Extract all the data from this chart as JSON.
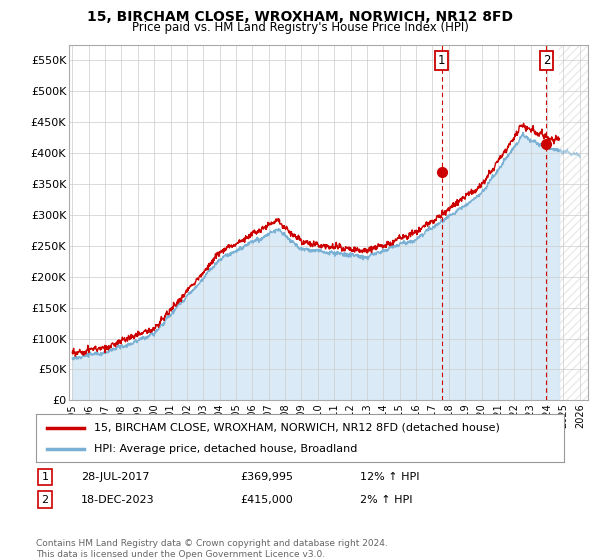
{
  "title": "15, BIRCHAM CLOSE, WROXHAM, NORWICH, NR12 8FD",
  "subtitle": "Price paid vs. HM Land Registry's House Price Index (HPI)",
  "ylabel_ticks": [
    "£0",
    "£50K",
    "£100K",
    "£150K",
    "£200K",
    "£250K",
    "£300K",
    "£350K",
    "£400K",
    "£450K",
    "£500K",
    "£550K"
  ],
  "ytick_values": [
    0,
    50000,
    100000,
    150000,
    200000,
    250000,
    300000,
    350000,
    400000,
    450000,
    500000,
    550000
  ],
  "ylim": [
    0,
    575000
  ],
  "xlim_start": 1994.8,
  "xlim_end": 2026.5,
  "x_ticks": [
    1995,
    1996,
    1997,
    1998,
    1999,
    2000,
    2001,
    2002,
    2003,
    2004,
    2005,
    2006,
    2007,
    2008,
    2009,
    2010,
    2011,
    2012,
    2013,
    2014,
    2015,
    2016,
    2017,
    2018,
    2019,
    2020,
    2021,
    2022,
    2023,
    2024,
    2025,
    2026
  ],
  "sale1_x": 2017.57,
  "sale1_y": 369995,
  "sale1_label": "1",
  "sale1_date": "28-JUL-2017",
  "sale1_price": "£369,995",
  "sale1_hpi": "12% ↑ HPI",
  "sale2_x": 2023.96,
  "sale2_y": 415000,
  "sale2_label": "2",
  "sale2_date": "18-DEC-2023",
  "sale2_price": "£415,000",
  "sale2_hpi": "2% ↑ HPI",
  "red_line_color": "#cc0000",
  "blue_line_color": "#7ab0d4",
  "hpi_shading_color": "#d6e8f5",
  "grid_color": "#cccccc",
  "background_color": "#ffffff",
  "legend_line1": "15, BIRCHAM CLOSE, WROXHAM, NORWICH, NR12 8FD (detached house)",
  "legend_line2": "HPI: Average price, detached house, Broadland",
  "footnote": "Contains HM Land Registry data © Crown copyright and database right 2024.\nThis data is licensed under the Open Government Licence v3.0.",
  "future_cutoff": 2024.75,
  "noise_seed": 12
}
